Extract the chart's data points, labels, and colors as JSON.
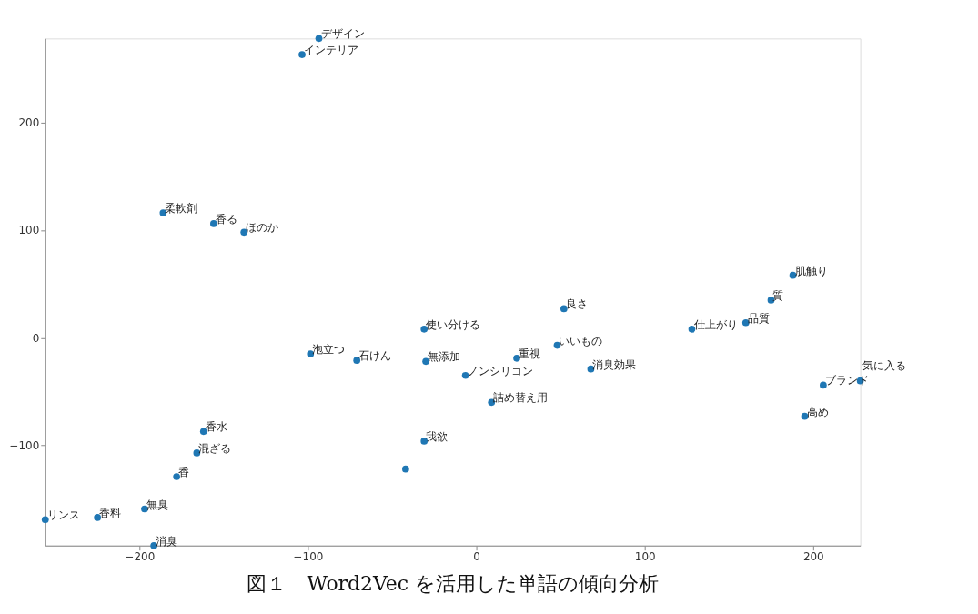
{
  "chart_data": {
    "type": "scatter",
    "x": [
      -93.5,
      -103.5,
      -186,
      -156,
      -138,
      188,
      175,
      160,
      128,
      52,
      48,
      24,
      68,
      -6.5,
      9,
      206,
      228,
      195,
      -31,
      -98.5,
      -71,
      -30,
      -31,
      -42,
      -162,
      -166,
      -178,
      -197,
      -225,
      -256,
      -191.5
    ],
    "series": [
      {
        "color": "#1f77b4",
        "values": [
          278,
          263,
          116,
          106,
          98,
          58,
          35,
          14,
          8,
          27,
          -7,
          -19,
          -29,
          -35,
          -60,
          -44,
          -40,
          -73,
          8,
          -15,
          -21,
          -22,
          -96,
          -122,
          -87,
          -107,
          -129,
          -159,
          -167,
          -169,
          -193
        ]
      }
    ],
    "xlim": [
      -256,
      228
    ],
    "ylim": [
      -193,
      278
    ],
    "xticks": [
      -200,
      -100,
      0,
      100,
      200
    ],
    "yticks": [
      -100,
      0,
      100,
      200
    ],
    "grid": false,
    "marker": "circle",
    "annotations": [
      {
        "text": "デザイン",
        "x": -93.5,
        "y": 278
      },
      {
        "text": "インテリア",
        "x": -103.5,
        "y": 263
      },
      {
        "text": "柔軟剤",
        "x": -186,
        "y": 116
      },
      {
        "text": "香る",
        "x": -156,
        "y": 106
      },
      {
        "text": "ほのか",
        "x": -138,
        "y": 98
      },
      {
        "text": "肌触り",
        "x": 188,
        "y": 58
      },
      {
        "text": "質",
        "x": 175,
        "y": 35
      },
      {
        "text": "品質",
        "x": 160,
        "y": 14
      },
      {
        "text": "仕上がり",
        "x": 128,
        "y": 8
      },
      {
        "text": "良さ",
        "x": 52,
        "y": 27
      },
      {
        "text": "いいもの",
        "x": 48,
        "y": -7
      },
      {
        "text": "重視",
        "x": 24,
        "y": -19
      },
      {
        "text": "消臭効果",
        "x": 68,
        "y": -29
      },
      {
        "text": "ノンシリコン",
        "x": -6.5,
        "y": -35
      },
      {
        "text": "詰め替え用",
        "x": 9,
        "y": -60
      },
      {
        "text": "ブランド",
        "x": 206,
        "y": -44
      },
      {
        "text": "気に入る",
        "x": 228,
        "y": -40
      },
      {
        "text": "高め",
        "x": 195,
        "y": -73
      },
      {
        "text": "使い分ける",
        "x": -31,
        "y": 8
      },
      {
        "text": "泡立つ",
        "x": -98.5,
        "y": -15
      },
      {
        "text": "石けん",
        "x": -71,
        "y": -21
      },
      {
        "text": "無添加",
        "x": -30,
        "y": -22
      },
      {
        "text": "我欲",
        "x": -31,
        "y": -96
      },
      {
        "text": "香水",
        "x": -162,
        "y": -87
      },
      {
        "text": "混ざる",
        "x": -166,
        "y": -107
      },
      {
        "text": "香",
        "x": -178,
        "y": -129
      },
      {
        "text": "無臭",
        "x": -197,
        "y": -159
      },
      {
        "text": "香料",
        "x": -225,
        "y": -167
      },
      {
        "text": "リンス",
        "x": -256,
        "y": -169
      },
      {
        "text": "消臭",
        "x": -191.5,
        "y": -193
      },
      "図１　Word2Vec を活用した単語の傾向分析"
    ]
  }
}
